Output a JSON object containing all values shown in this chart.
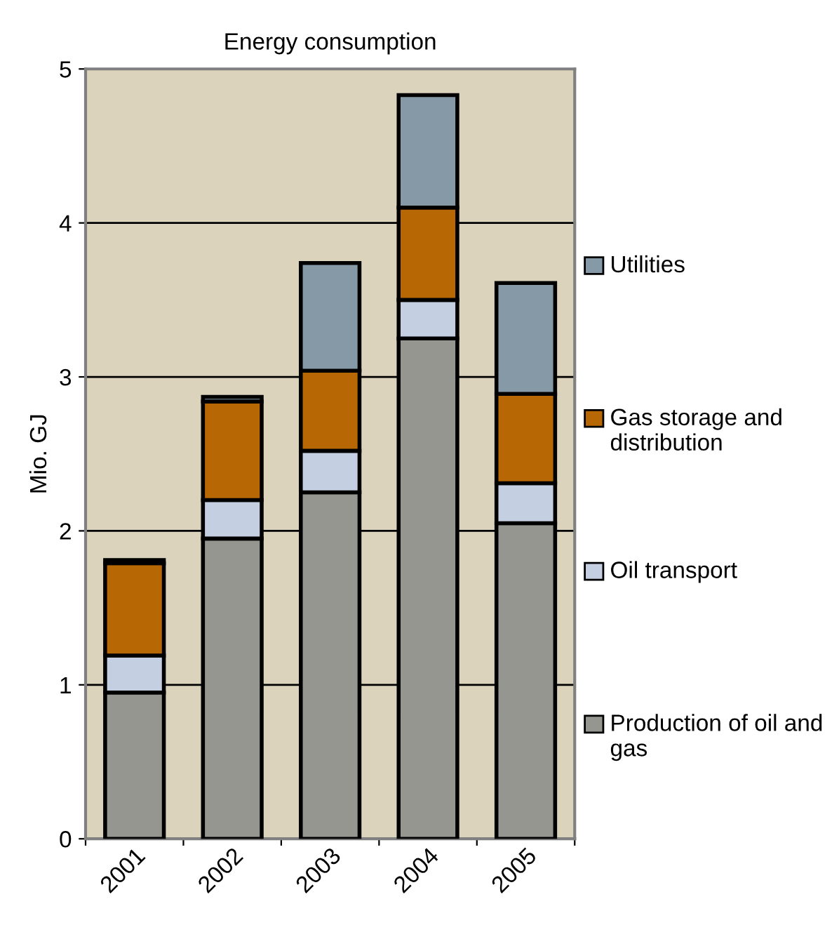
{
  "chart_data": {
    "type": "bar",
    "title": "Energy consumption",
    "ylabel": "Mio. GJ",
    "stacked": true,
    "categories": [
      "2001",
      "2002",
      "2003",
      "2004",
      "2005"
    ],
    "series": [
      {
        "name": "Production of oil and gas",
        "color": "#969690",
        "values": [
          0.95,
          1.95,
          2.25,
          3.25,
          2.05
        ]
      },
      {
        "name": "Oil transport",
        "color": "#c5cfe2",
        "values": [
          0.24,
          0.25,
          0.27,
          0.25,
          0.26
        ]
      },
      {
        "name": "Gas storage and distribution",
        "color": "#b76804",
        "values": [
          0.6,
          0.64,
          0.52,
          0.6,
          0.58
        ]
      },
      {
        "name": "Utilities",
        "color": "#8599a6",
        "values": [
          0.02,
          0.03,
          0.7,
          0.73,
          0.72
        ]
      }
    ],
    "ylim": [
      0,
      5
    ],
    "yticks": [
      0,
      1,
      2,
      3,
      4,
      5
    ],
    "grid": "y",
    "legend": "right"
  }
}
